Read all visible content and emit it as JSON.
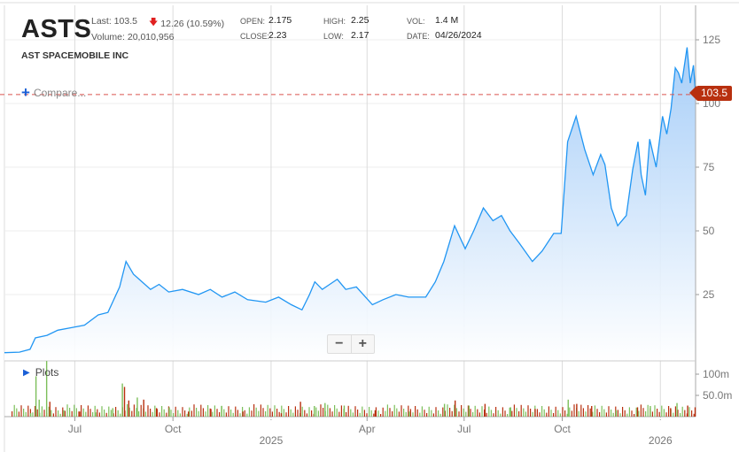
{
  "header": {
    "symbol": "ASTS",
    "company": "AST SPACEMOBILE INC",
    "last": "Last: 103.5",
    "change": "12.26 (10.59%)",
    "change_direction": "down",
    "volume": "Volume: 20,010,956",
    "open_label": "OPEN:",
    "open": "2.175",
    "close_label": "CLOSE:",
    "close": "2.23",
    "high_label": "HIGH:",
    "high": "2.25",
    "low_label": "LOW:",
    "low": "2.17",
    "vol_label": "VOL:",
    "vol": "1.4 M",
    "date_label": "DATE:",
    "date": "04/26/2024"
  },
  "compare_label": "Compare...",
  "plots_label": "Plots",
  "zoom": {
    "minus": "−",
    "plus": "+"
  },
  "colors": {
    "line": "#2196f3",
    "fill_top": "#9ec9f7",
    "fill_bottom": "#ffffff",
    "up": "#7cbf5a",
    "down": "#b8300f",
    "last_line": "#d9534f"
  },
  "chart_data": {
    "type": "area",
    "last_price": "103.5",
    "y_ticks": [
      25,
      50,
      75,
      100,
      125
    ],
    "ylim": [
      0,
      138
    ],
    "volume_ticks": [
      {
        "v": 50,
        "label": "50.0m"
      },
      {
        "v": 100,
        "label": "100m"
      }
    ],
    "volume_ylim": [
      0,
      125
    ],
    "x_ticks": [
      {
        "date": "2024-07-01",
        "label": "Jul"
      },
      {
        "date": "2024-10-01",
        "label": "Oct"
      },
      {
        "date": "2025-01-01",
        "label": "2025",
        "year": true
      },
      {
        "date": "2025-04-01",
        "label": "Apr"
      },
      {
        "date": "2025-07-01",
        "label": "Jul"
      },
      {
        "date": "2025-10-01",
        "label": "Oct"
      },
      {
        "date": "2026-01-01",
        "label": "2026",
        "year": true
      }
    ],
    "xlim": [
      "2024-04-26",
      "2026-02-03"
    ],
    "price": [
      [
        "2024-04-26",
        2.2
      ],
      [
        "2024-05-10",
        2.4
      ],
      [
        "2024-05-20",
        3.5
      ],
      [
        "2024-05-25",
        8
      ],
      [
        "2024-06-05",
        9
      ],
      [
        "2024-06-15",
        11
      ],
      [
        "2024-06-28",
        12
      ],
      [
        "2024-07-10",
        13
      ],
      [
        "2024-07-23",
        17
      ],
      [
        "2024-08-01",
        18
      ],
      [
        "2024-08-12",
        28
      ],
      [
        "2024-08-18",
        38
      ],
      [
        "2024-08-25",
        33
      ],
      [
        "2024-09-02",
        30
      ],
      [
        "2024-09-10",
        27
      ],
      [
        "2024-09-18",
        29
      ],
      [
        "2024-09-27",
        26
      ],
      [
        "2024-10-10",
        27
      ],
      [
        "2024-10-25",
        25
      ],
      [
        "2024-11-05",
        27
      ],
      [
        "2024-11-16",
        24
      ],
      [
        "2024-11-28",
        26
      ],
      [
        "2024-12-10",
        23
      ],
      [
        "2024-12-27",
        22
      ],
      [
        "2025-01-08",
        24
      ],
      [
        "2025-01-20",
        21
      ],
      [
        "2025-01-30",
        19
      ],
      [
        "2025-02-06",
        25
      ],
      [
        "2025-02-11",
        30
      ],
      [
        "2025-02-18",
        27
      ],
      [
        "2025-02-25",
        29
      ],
      [
        "2025-03-04",
        31
      ],
      [
        "2025-03-12",
        27
      ],
      [
        "2025-03-22",
        28
      ],
      [
        "2025-04-06",
        21
      ],
      [
        "2025-04-16",
        23
      ],
      [
        "2025-04-28",
        25
      ],
      [
        "2025-05-10",
        24
      ],
      [
        "2025-05-26",
        24
      ],
      [
        "2025-06-04",
        30
      ],
      [
        "2025-06-12",
        38
      ],
      [
        "2025-06-22",
        52
      ],
      [
        "2025-07-02",
        43
      ],
      [
        "2025-07-10",
        50
      ],
      [
        "2025-07-19",
        59
      ],
      [
        "2025-07-28",
        54
      ],
      [
        "2025-08-05",
        56
      ],
      [
        "2025-08-13",
        50
      ],
      [
        "2025-08-22",
        45
      ],
      [
        "2025-09-03",
        38
      ],
      [
        "2025-09-12",
        42
      ],
      [
        "2025-09-23",
        49
      ],
      [
        "2025-09-30",
        49
      ],
      [
        "2025-10-06",
        85
      ],
      [
        "2025-10-14",
        95
      ],
      [
        "2025-10-22",
        82
      ],
      [
        "2025-10-30",
        72
      ],
      [
        "2025-11-06",
        80
      ],
      [
        "2025-11-10",
        76
      ],
      [
        "2025-11-16",
        59
      ],
      [
        "2025-11-22",
        52
      ],
      [
        "2025-11-30",
        56
      ],
      [
        "2025-12-06",
        74
      ],
      [
        "2025-12-11",
        85
      ],
      [
        "2025-12-14",
        72
      ],
      [
        "2025-12-18",
        64
      ],
      [
        "2025-12-22",
        86
      ],
      [
        "2025-12-28",
        75
      ],
      [
        "2026-01-03",
        95
      ],
      [
        "2026-01-07",
        88
      ],
      [
        "2026-01-11",
        98
      ],
      [
        "2026-01-15",
        114
      ],
      [
        "2026-01-18",
        112
      ],
      [
        "2026-01-21",
        108
      ],
      [
        "2026-01-26",
        122
      ],
      [
        "2026-01-29",
        108
      ],
      [
        "2026-02-01",
        115
      ],
      [
        "2026-02-03",
        103.5
      ]
    ],
    "volume": [
      [
        "2024-05-20",
        8,
        true
      ],
      [
        "2024-05-25",
        95,
        true
      ],
      [
        "2024-05-28",
        40,
        true
      ],
      [
        "2024-06-04",
        131,
        true
      ],
      [
        "2024-06-07",
        35,
        false
      ],
      [
        "2024-06-20",
        15,
        true
      ],
      [
        "2024-07-05",
        12,
        false
      ],
      [
        "2024-07-20",
        10,
        true
      ],
      [
        "2024-08-05",
        20,
        true
      ],
      [
        "2024-08-14",
        78,
        true
      ],
      [
        "2024-08-16",
        70,
        false
      ],
      [
        "2024-08-20",
        38,
        false
      ],
      [
        "2024-08-28",
        45,
        true
      ],
      [
        "2024-09-03",
        40,
        false
      ],
      [
        "2024-09-15",
        20,
        false
      ],
      [
        "2024-09-27",
        22,
        true
      ],
      [
        "2024-10-15",
        12,
        false
      ],
      [
        "2024-11-05",
        18,
        false
      ],
      [
        "2024-11-15",
        25,
        true
      ],
      [
        "2024-12-05",
        12,
        false
      ],
      [
        "2025-01-10",
        8,
        false
      ],
      [
        "2025-01-28",
        35,
        false
      ],
      [
        "2025-02-10",
        25,
        true
      ],
      [
        "2025-02-20",
        32,
        true
      ],
      [
        "2025-03-10",
        26,
        true
      ],
      [
        "2025-04-08",
        15,
        false
      ],
      [
        "2025-05-10",
        12,
        true
      ],
      [
        "2025-06-12",
        30,
        true
      ],
      [
        "2025-06-22",
        38,
        false
      ],
      [
        "2025-07-05",
        26,
        true
      ],
      [
        "2025-07-20",
        30,
        false
      ],
      [
        "2025-08-13",
        22,
        true
      ],
      [
        "2025-09-05",
        18,
        false
      ],
      [
        "2025-10-06",
        40,
        true
      ],
      [
        "2025-10-14",
        30,
        false
      ],
      [
        "2025-10-28",
        25,
        false
      ],
      [
        "2025-11-20",
        15,
        true
      ],
      [
        "2025-12-10",
        22,
        false
      ],
      [
        "2025-12-22",
        25,
        true
      ],
      [
        "2026-01-10",
        20,
        false
      ],
      [
        "2026-01-16",
        32,
        true
      ],
      [
        "2026-01-26",
        26,
        false
      ],
      [
        "2026-02-02",
        22,
        false
      ]
    ]
  }
}
